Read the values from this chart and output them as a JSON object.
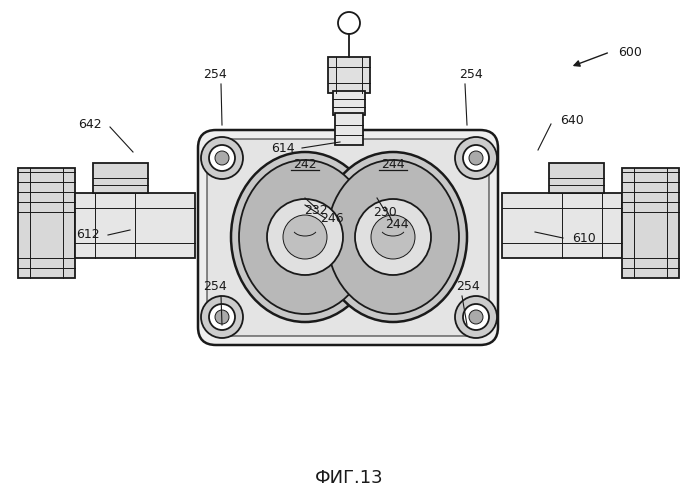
{
  "bg_color": "#ffffff",
  "line_color": "#1a1a1a",
  "fig_label": "ФИГ.13",
  "label_fs": 9,
  "title_fs": 13
}
